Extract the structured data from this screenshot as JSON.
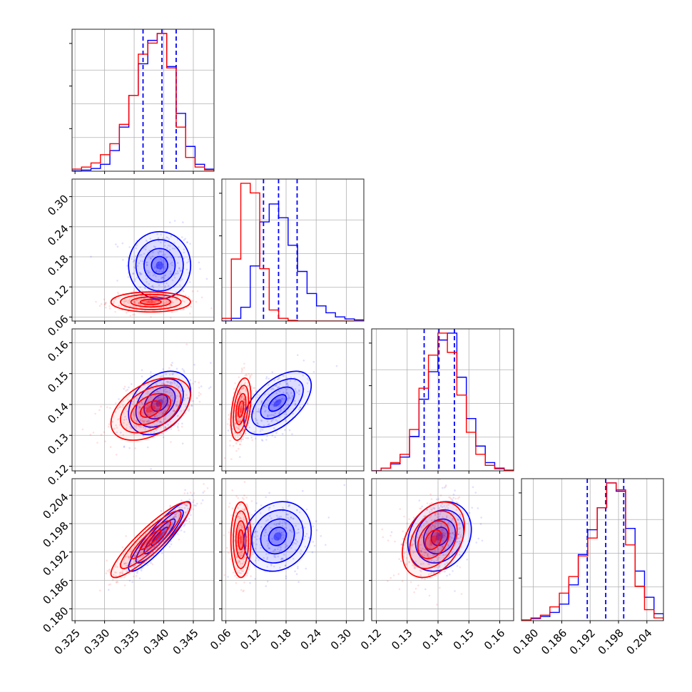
{
  "chart_data": {
    "type": "corner",
    "grid": true,
    "params": [
      {
        "ticks": [
          0.325,
          0.33,
          0.335,
          0.34,
          0.345
        ],
        "tick_labels": [
          "0.325",
          "0.330",
          "0.335",
          "0.340",
          "0.345"
        ],
        "range": [
          0.3245,
          0.3485
        ]
      },
      {
        "ticks": [
          0.06,
          0.12,
          0.18,
          0.24,
          0.3
        ],
        "tick_labels": [
          "0.06",
          "0.12",
          "0.18",
          "0.24",
          "0.30"
        ],
        "range": [
          0.052,
          0.335
        ]
      },
      {
        "ticks": [
          0.12,
          0.13,
          0.14,
          0.15,
          0.16
        ],
        "tick_labels": [
          "0.12",
          "0.13",
          "0.14",
          "0.15",
          "0.16"
        ],
        "range": [
          0.1185,
          0.1645
        ]
      },
      {
        "ticks": [
          0.18,
          0.186,
          0.192,
          0.198,
          0.204
        ],
        "tick_labels": [
          "0.180",
          "0.186",
          "0.192",
          "0.198",
          "0.204"
        ],
        "range": [
          0.1775,
          0.2075
        ]
      }
    ],
    "series": [
      {
        "color": "#0000ff",
        "means": [
          0.3393,
          0.163,
          0.1405,
          0.1953
        ],
        "sds": [
          0.0025,
          0.032,
          0.0049,
          0.0035
        ],
        "quantiles": [
          [
            0.3365,
            0.3397,
            0.3421
          ],
          [
            0.135,
            0.165,
            0.202
          ],
          [
            0.1355,
            0.1403,
            0.1453
          ],
          [
            0.1914,
            0.1953,
            0.1991
          ]
        ],
        "hist": [
          [
            0.003,
            0.008,
            0.02,
            0.05,
            0.15,
            0.32,
            0.55,
            0.78,
            0.95,
            1.0,
            0.76,
            0.42,
            0.18,
            0.05,
            0.015
          ],
          [
            0.0,
            0.02,
            0.1,
            0.4,
            0.72,
            0.85,
            0.75,
            0.55,
            0.36,
            0.2,
            0.11,
            0.06,
            0.03,
            0.015,
            0.008
          ],
          [
            0.0,
            0.02,
            0.05,
            0.1,
            0.25,
            0.52,
            0.72,
            0.95,
            1.0,
            0.68,
            0.38,
            0.18,
            0.06,
            0.02,
            0.005
          ],
          [
            0.005,
            0.015,
            0.03,
            0.06,
            0.12,
            0.26,
            0.48,
            0.66,
            0.82,
            1.0,
            0.94,
            0.67,
            0.36,
            0.17,
            0.05
          ]
        ],
        "correlations": [
          [
            0,
            1,
            0.0
          ],
          [
            0,
            2,
            0.35
          ],
          [
            0,
            3,
            0.9
          ],
          [
            1,
            2,
            0.55
          ],
          [
            1,
            3,
            0.15
          ],
          [
            2,
            3,
            0.2
          ]
        ]
      },
      {
        "color": "#ff0000",
        "means": [
          0.3378,
          0.09,
          0.1385,
          0.1946
        ],
        "sds": [
          0.0032,
          0.0095,
          0.0048,
          0.0038
        ],
        "quantiles": null,
        "hist": [
          [
            0.015,
            0.03,
            0.06,
            0.12,
            0.2,
            0.34,
            0.55,
            0.85,
            0.93,
            1.0,
            0.75,
            0.32,
            0.1,
            0.03,
            0.01
          ],
          [
            0.02,
            0.45,
            1.0,
            0.93,
            0.38,
            0.08,
            0.02,
            0.005,
            0.0,
            0.0,
            0.0,
            0.0,
            0.0,
            0.0,
            0.0
          ],
          [
            0.0,
            0.02,
            0.06,
            0.12,
            0.3,
            0.6,
            0.84,
            1.0,
            0.86,
            0.55,
            0.28,
            0.12,
            0.04,
            0.015,
            0.005
          ],
          [
            0.005,
            0.02,
            0.04,
            0.1,
            0.2,
            0.32,
            0.47,
            0.6,
            0.82,
            1.0,
            0.95,
            0.55,
            0.25,
            0.08,
            0.02
          ]
        ],
        "correlations": [
          [
            0,
            1,
            0.0
          ],
          [
            0,
            2,
            0.45
          ],
          [
            0,
            3,
            0.9
          ],
          [
            1,
            2,
            0.4
          ],
          [
            1,
            3,
            0.0
          ],
          [
            2,
            3,
            0.35
          ]
        ]
      }
    ]
  }
}
